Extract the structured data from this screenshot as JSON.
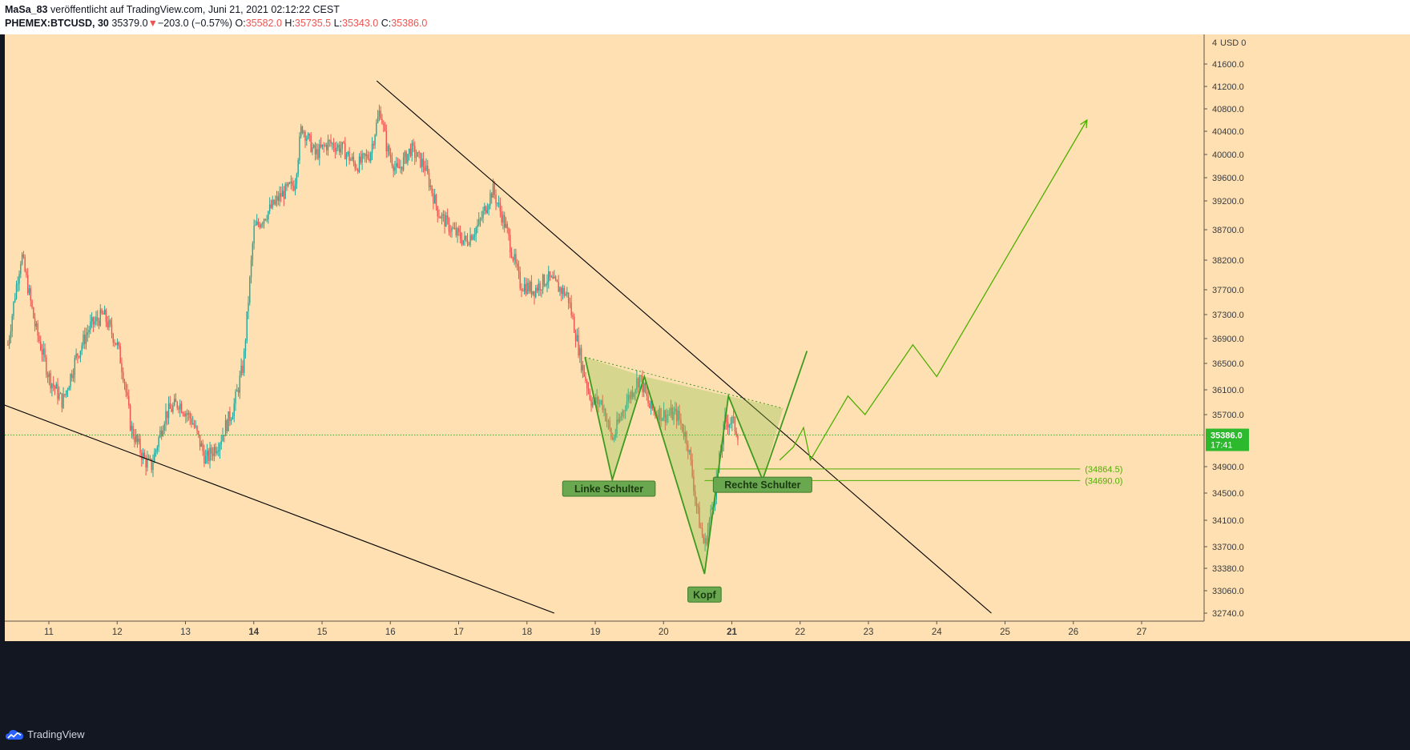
{
  "header": {
    "publisher": "MaSa_83",
    "published_text": "veröffentlicht auf TradingView.com, Juni 21, 2021 02:12:22 CEST",
    "symbol": "PHEMEX:BTCUSD, 30",
    "last_price": "35379.0",
    "change_arrow": "▼",
    "change": "−203.0 (−0.57%)",
    "open_label": "O:",
    "open": "35582.0",
    "high_label": "H:",
    "high": "35735.5",
    "low_label": "L:",
    "low": "35343.0",
    "close_label": "C:",
    "close": "35386.0"
  },
  "footer": {
    "brand": "TradingView"
  },
  "colors": {
    "background": "#ffe0b2",
    "candle_up": "#26a69a",
    "candle_down": "#ef5350",
    "pattern_green": "#3c9b1e",
    "projection_green": "#4caf00",
    "label_fill": "#6aa84f",
    "price_badge": "#2db92d"
  },
  "chart_data": {
    "type": "candlestick",
    "symbol": "PHEMEX:BTCUSD",
    "interval": "30",
    "currency_label": "USD",
    "currency_fragment": "4",
    "y_ticks": [
      41600,
      41200,
      40800,
      40400,
      40000,
      39600,
      39200,
      38700,
      38200,
      37700,
      37300,
      36900,
      36500,
      36100,
      35700,
      34900,
      34500,
      34100,
      33700,
      33380,
      33060,
      32740
    ],
    "y_tick_labels": [
      "41600.0",
      "41200.0",
      "40800.0",
      "40400.0",
      "40000.0",
      "39600.0",
      "39200.0",
      "38700.0",
      "38200.0",
      "37700.0",
      "37300.0",
      "36900.0",
      "36500.0",
      "36100.0",
      "35700.0",
      "34900.0",
      "34500.0",
      "34100.0",
      "33700.0",
      "33380.0",
      "33060.0",
      "32740.0"
    ],
    "x_ticks": [
      11,
      12,
      13,
      14,
      15,
      16,
      17,
      18,
      19,
      20,
      21,
      22,
      23,
      24,
      25,
      26,
      27
    ],
    "x_tick_labels": [
      "11",
      "12",
      "13",
      "14",
      "15",
      "16",
      "17",
      "18",
      "19",
      "20",
      "21",
      "22",
      "23",
      "24",
      "25",
      "26",
      "27"
    ],
    "x_bold_ticks": [
      14,
      21
    ],
    "current_price": {
      "value": 35386.0,
      "label": "35386.0",
      "countdown": "17:41"
    },
    "price_path": [
      [
        10.4,
        36800
      ],
      [
        10.5,
        37600
      ],
      [
        10.6,
        38300
      ],
      [
        10.8,
        37100
      ],
      [
        11.0,
        36300
      ],
      [
        11.2,
        35900
      ],
      [
        11.4,
        36600
      ],
      [
        11.6,
        37100
      ],
      [
        11.8,
        37300
      ],
      [
        12.0,
        36800
      ],
      [
        12.1,
        36300
      ],
      [
        12.2,
        35500
      ],
      [
        12.4,
        35000
      ],
      [
        12.5,
        34900
      ],
      [
        12.7,
        35700
      ],
      [
        12.9,
        35900
      ],
      [
        13.1,
        35600
      ],
      [
        13.3,
        35000
      ],
      [
        13.5,
        35300
      ],
      [
        13.7,
        35800
      ],
      [
        13.85,
        36500
      ],
      [
        14.0,
        38700
      ],
      [
        14.2,
        39000
      ],
      [
        14.4,
        39300
      ],
      [
        14.6,
        39500
      ],
      [
        14.7,
        40500
      ],
      [
        14.9,
        40000
      ],
      [
        15.1,
        40200
      ],
      [
        15.3,
        40100
      ],
      [
        15.5,
        39800
      ],
      [
        15.7,
        40000
      ],
      [
        15.85,
        40800
      ],
      [
        15.95,
        40100
      ],
      [
        16.1,
        39700
      ],
      [
        16.3,
        40100
      ],
      [
        16.5,
        39800
      ],
      [
        16.7,
        39000
      ],
      [
        16.9,
        38700
      ],
      [
        17.1,
        38500
      ],
      [
        17.3,
        38800
      ],
      [
        17.5,
        39400
      ],
      [
        17.7,
        38700
      ],
      [
        17.9,
        37800
      ],
      [
        18.1,
        37700
      ],
      [
        18.3,
        37900
      ],
      [
        18.6,
        37600
      ],
      [
        18.8,
        36500
      ],
      [
        18.95,
        35900
      ],
      [
        19.1,
        35900
      ],
      [
        19.25,
        35300
      ],
      [
        19.45,
        35900
      ],
      [
        19.65,
        36300
      ],
      [
        19.8,
        35800
      ],
      [
        20.0,
        35700
      ],
      [
        20.2,
        35700
      ],
      [
        20.35,
        35300
      ],
      [
        20.5,
        34200
      ],
      [
        20.6,
        33700
      ],
      [
        20.75,
        34500
      ],
      [
        20.9,
        35600
      ],
      [
        21.0,
        35600
      ],
      [
        21.1,
        35400
      ]
    ],
    "trendlines": [
      {
        "name": "descending-resistance",
        "from": [
          15.8,
          41300
        ],
        "to": [
          24.8,
          32740
        ]
      },
      {
        "name": "lower-support",
        "from": [
          10.0,
          36000
        ],
        "to": [
          18.4,
          32740
        ]
      }
    ],
    "neckline": {
      "from": [
        18.85,
        36600
      ],
      "to": [
        21.75,
        35800
      ]
    },
    "pattern_zigzag": [
      [
        18.85,
        36600
      ],
      [
        19.25,
        34700
      ],
      [
        19.72,
        36300
      ],
      [
        20.6,
        33300
      ],
      [
        20.95,
        36000
      ],
      [
        21.45,
        34700
      ],
      [
        22.1,
        36700
      ]
    ],
    "pattern_fill_left": [
      [
        18.85,
        36600
      ],
      [
        19.25,
        34700
      ],
      [
        19.72,
        36300
      ]
    ],
    "pattern_fill_middle": [
      [
        19.72,
        36300
      ],
      [
        20.6,
        33300
      ],
      [
        20.95,
        36000
      ]
    ],
    "pattern_fill_right": [
      [
        20.95,
        36000
      ],
      [
        21.45,
        34700
      ],
      [
        21.75,
        35800
      ]
    ],
    "labels": [
      {
        "text": "Linke Schulter",
        "at": [
          19.2,
          34560
        ]
      },
      {
        "text": "Kopf",
        "at": [
          20.6,
          33000
        ]
      },
      {
        "text": "Rechte Schulter",
        "at": [
          21.45,
          34620
        ]
      }
    ],
    "levels": [
      {
        "value": 34864.5,
        "label": "(34864.5)",
        "from": 20.6,
        "to": 26.1
      },
      {
        "value": 34690.0,
        "label": "(34690.0)",
        "from": 20.6,
        "to": 26.1
      }
    ],
    "projection": [
      [
        21.7,
        35000
      ],
      [
        21.9,
        35200
      ],
      [
        22.05,
        35500
      ],
      [
        22.15,
        35000
      ],
      [
        22.7,
        36000
      ],
      [
        22.95,
        35700
      ],
      [
        23.65,
        36800
      ],
      [
        24.0,
        36300
      ],
      [
        26.2,
        40600
      ]
    ]
  }
}
